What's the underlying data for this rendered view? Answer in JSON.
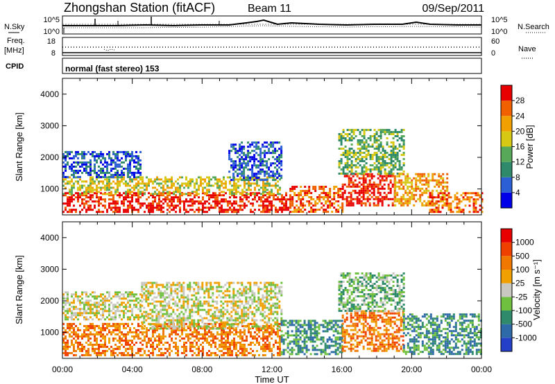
{
  "header": {
    "station": "Zhongshan Station (fitACF)",
    "beam": "Beam 11",
    "date": "09/Sep/2011"
  },
  "aux_panels": {
    "nsky_label": "N.Sky",
    "nsky_ticks": [
      "10^5",
      "10^0"
    ],
    "nsearch_label": "N.Search",
    "nsearch_ticks": [
      "10^5",
      "10^0"
    ],
    "freq_label_line1": "Freq.",
    "freq_label_line2": "[MHz]",
    "freq_ticks": [
      "18",
      "8"
    ],
    "nave_label": "Nave",
    "nave_ticks": [
      "60",
      "0"
    ],
    "cpid_label": "CPID",
    "cpid_text": "normal (fast stereo) 153"
  },
  "chart_data": [
    {
      "type": "heatmap",
      "name": "power",
      "ylabel": "Slant Range [km]",
      "ylim": [
        180,
        4500
      ],
      "yticks": [
        1000,
        2000,
        3000,
        4000
      ],
      "xlim": [
        0,
        24
      ],
      "xticks": [
        "00:00",
        "04:00",
        "08:00",
        "12:00",
        "16:00",
        "20:00",
        "00:00"
      ],
      "xlabel": "Time UT",
      "colorbar": {
        "label": "Power [dB]",
        "ticks": [
          "28",
          "24",
          "20",
          "16",
          "12",
          "8",
          "4"
        ],
        "colors": [
          "#0000e8",
          "#2c5fd6",
          "#2f8a6c",
          "#58a85a",
          "#d7c814",
          "#f0a000",
          "#f06000",
          "#e80000"
        ]
      },
      "regions": [
        {
          "t": [
            0,
            13.0
          ],
          "r": [
            300,
            900
          ],
          "level": 7
        },
        {
          "t": [
            0,
            12.5
          ],
          "r": [
            850,
            1400
          ],
          "level": 4
        },
        {
          "t": [
            0,
            4.5
          ],
          "r": [
            1400,
            2200
          ],
          "level": 1
        },
        {
          "t": [
            9.5,
            12.5
          ],
          "r": [
            1300,
            2500
          ],
          "level": 1
        },
        {
          "t": [
            13.0,
            16.0
          ],
          "r": [
            300,
            1100
          ],
          "level": 6
        },
        {
          "t": [
            16.0,
            19.0
          ],
          "r": [
            500,
            1500
          ],
          "level": 7
        },
        {
          "t": [
            15.8,
            19.5
          ],
          "r": [
            1500,
            2900
          ],
          "level": 3
        },
        {
          "t": [
            19.0,
            22.0
          ],
          "r": [
            500,
            1500
          ],
          "level": 5
        },
        {
          "t": [
            21.0,
            24.0
          ],
          "r": [
            250,
            900
          ],
          "level": 6
        }
      ]
    },
    {
      "type": "heatmap",
      "name": "velocity",
      "ylabel": "Slant Range [km]",
      "ylim": [
        180,
        4500
      ],
      "yticks": [
        1000,
        2000,
        3000,
        4000
      ],
      "xlim": [
        0,
        24
      ],
      "xticks": [
        "00:00",
        "04:00",
        "08:00",
        "12:00",
        "16:00",
        "20:00",
        "00:00"
      ],
      "xlabel": "Time UT",
      "colorbar": {
        "label": "Velocity [m s⁻¹]",
        "ticks": [
          "1000",
          "500",
          "100",
          "25",
          "-25",
          "-100",
          "-500",
          "-1000"
        ],
        "colors": [
          "#2540c8",
          "#2f6aa8",
          "#2f8a6c",
          "#70c040",
          "#c8c8c0",
          "#f0a000",
          "#f07800",
          "#f04000",
          "#e80000"
        ]
      },
      "regions": [
        {
          "t": [
            0,
            12.5
          ],
          "r": [
            300,
            1300
          ],
          "level": 6
        },
        {
          "t": [
            0,
            4.5
          ],
          "r": [
            1400,
            2300
          ],
          "level": 4
        },
        {
          "t": [
            4.5,
            12.5
          ],
          "r": [
            1100,
            2600
          ],
          "level": 4
        },
        {
          "t": [
            12.5,
            16.0
          ],
          "r": [
            300,
            1400
          ],
          "level": 2
        },
        {
          "t": [
            16.0,
            19.5
          ],
          "r": [
            400,
            1700
          ],
          "level": 6
        },
        {
          "t": [
            15.8,
            19.5
          ],
          "r": [
            1700,
            2900
          ],
          "level": 3
        },
        {
          "t": [
            19.5,
            24.0
          ],
          "r": [
            300,
            1600
          ],
          "level": 2
        }
      ]
    }
  ]
}
